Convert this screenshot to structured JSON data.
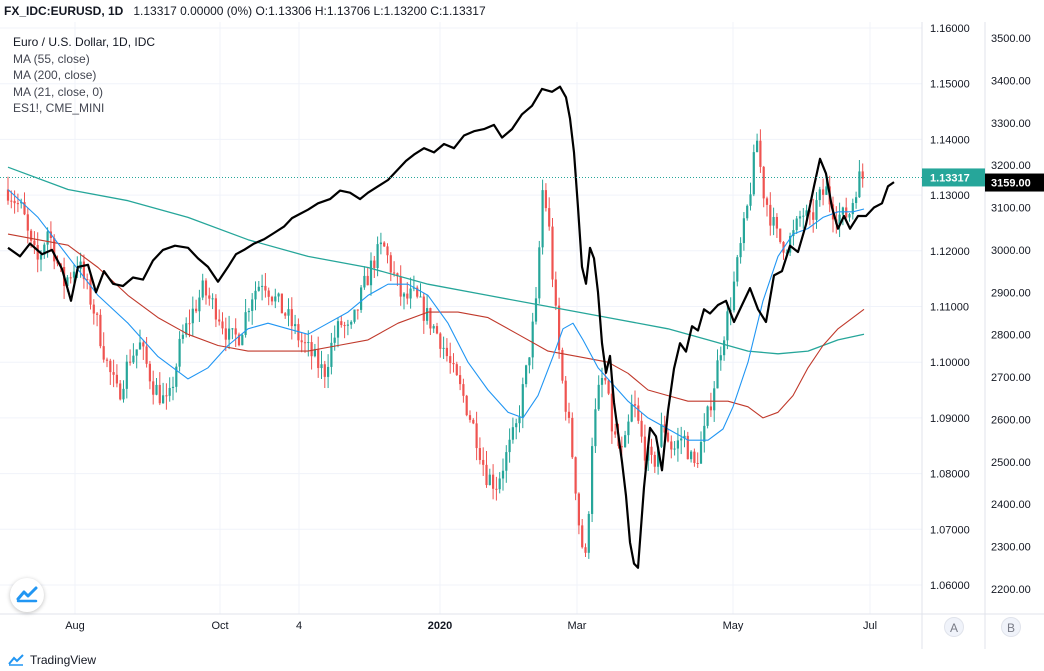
{
  "header": {
    "symbol": "FX_IDC:EURUSD, 1D",
    "ohlc": "1.13317 0.00000 (0%) O:1.13306 H:1.13706 L:1.13200 C:1.13317"
  },
  "legend": [
    "Euro / U.S. Dollar, 1D, IDC",
    "MA (55, close)",
    "MA (200, close)",
    "MA (21, close, 0)",
    "ES1!, CME_MINI"
  ],
  "footer": {
    "brand": "TradingView"
  },
  "scale_buttons": [
    "A",
    "B"
  ],
  "colors": {
    "up": "#26a69a",
    "down": "#ef5350",
    "ma55": "#2196f3",
    "ma200": "#26a69a",
    "ma21": "#c0392b",
    "es": "#000000",
    "price_badge": "#26a69a",
    "es_badge": "#000000"
  },
  "chart_data": {
    "type": "candlestick",
    "x_ticks": [
      "Aug",
      "Oct",
      "4",
      "2020",
      "Mar",
      "May",
      "Jul"
    ],
    "eurusd_axis": {
      "ticks": [
        "1.16000",
        "1.15000",
        "1.14000",
        "1.13000",
        "1.12000",
        "1.11000",
        "1.10000",
        "1.09000",
        "1.08000",
        "1.07000",
        "1.06000"
      ],
      "range": [
        1.0555,
        1.1605
      ]
    },
    "es_axis": {
      "ticks": [
        "3500.00",
        "3400.00",
        "3300.00",
        "3200.00",
        "3100.00",
        "3000.00",
        "2900.00",
        "2800.00",
        "2700.00",
        "2600.00",
        "2500.00",
        "2400.00",
        "2300.00",
        "2200.00"
      ],
      "range": [
        2170,
        3510
      ]
    },
    "last_price": "1.13317",
    "last_price_value": 1.13317,
    "es_last": "3159.00",
    "es_last_value": 3159,
    "eurusd_close_path": [
      [
        0,
        1.131
      ],
      [
        15,
        1.127
      ],
      [
        22,
        1.121
      ],
      [
        30,
        1.118
      ],
      [
        40,
        1.124
      ],
      [
        55,
        1.114
      ],
      [
        70,
        1.118
      ],
      [
        85,
        1.11
      ],
      [
        100,
        1.099
      ],
      [
        110,
        1.094
      ],
      [
        122,
        1.101
      ],
      [
        132,
        1.103
      ],
      [
        145,
        1.096
      ],
      [
        160,
        1.092
      ],
      [
        172,
        1.103
      ],
      [
        182,
        1.108
      ],
      [
        195,
        1.113
      ],
      [
        210,
        1.109
      ],
      [
        222,
        1.104
      ],
      [
        232,
        1.105
      ],
      [
        243,
        1.112
      ],
      [
        255,
        1.115
      ],
      [
        268,
        1.111
      ],
      [
        280,
        1.108
      ],
      [
        292,
        1.104
      ],
      [
        305,
        1.101
      ],
      [
        316,
        1.098
      ],
      [
        325,
        1.104
      ],
      [
        333,
        1.107
      ],
      [
        342,
        1.105
      ],
      [
        355,
        1.113
      ],
      [
        365,
        1.118
      ],
      [
        375,
        1.121
      ],
      [
        385,
        1.116
      ],
      [
        395,
        1.111
      ],
      [
        405,
        1.112
      ],
      [
        420,
        1.108
      ],
      [
        433,
        1.104
      ],
      [
        445,
        1.098
      ],
      [
        455,
        1.094
      ],
      [
        468,
        1.087
      ],
      [
        478,
        1.08
      ],
      [
        488,
        1.078
      ],
      [
        498,
        1.083
      ],
      [
        508,
        1.088
      ],
      [
        518,
        1.098
      ],
      [
        528,
        1.11
      ],
      [
        535,
        1.132
      ],
      [
        541,
        1.124
      ],
      [
        547,
        1.11
      ],
      [
        553,
        1.098
      ],
      [
        560,
        1.09
      ],
      [
        566,
        1.081
      ],
      [
        572,
        1.069
      ],
      [
        578,
        1.064
      ],
      [
        584,
        1.086
      ],
      [
        590,
        1.094
      ],
      [
        596,
        1.098
      ],
      [
        605,
        1.087
      ],
      [
        615,
        1.083
      ],
      [
        625,
        1.093
      ],
      [
        635,
        1.085
      ],
      [
        645,
        1.081
      ],
      [
        655,
        1.089
      ],
      [
        665,
        1.084
      ],
      [
        675,
        1.087
      ],
      [
        686,
        1.081
      ],
      [
        696,
        1.087
      ],
      [
        706,
        1.096
      ],
      [
        714,
        1.104
      ],
      [
        722,
        1.11
      ],
      [
        730,
        1.118
      ],
      [
        738,
        1.126
      ],
      [
        743,
        1.132
      ],
      [
        749,
        1.14
      ],
      [
        755,
        1.131
      ],
      [
        763,
        1.126
      ],
      [
        770,
        1.122
      ],
      [
        778,
        1.121
      ],
      [
        786,
        1.123
      ],
      [
        794,
        1.127
      ],
      [
        802,
        1.125
      ],
      [
        810,
        1.129
      ],
      [
        818,
        1.131
      ],
      [
        826,
        1.127
      ],
      [
        834,
        1.126
      ],
      [
        842,
        1.127
      ],
      [
        850,
        1.133
      ],
      [
        856,
        1.1332
      ]
    ],
    "ma55_path": [
      [
        0,
        1.131
      ],
      [
        30,
        1.126
      ],
      [
        60,
        1.119
      ],
      [
        90,
        1.112
      ],
      [
        120,
        1.107
      ],
      [
        150,
        1.101
      ],
      [
        180,
        1.097
      ],
      [
        200,
        1.099
      ],
      [
        220,
        1.103
      ],
      [
        240,
        1.106
      ],
      [
        260,
        1.107
      ],
      [
        280,
        1.106
      ],
      [
        300,
        1.105
      ],
      [
        320,
        1.107
      ],
      [
        340,
        1.109
      ],
      [
        360,
        1.112
      ],
      [
        380,
        1.114
      ],
      [
        400,
        1.114
      ],
      [
        420,
        1.112
      ],
      [
        440,
        1.107
      ],
      [
        460,
        1.1
      ],
      [
        480,
        1.095
      ],
      [
        500,
        1.091
      ],
      [
        515,
        1.09
      ],
      [
        530,
        1.094
      ],
      [
        545,
        1.101
      ],
      [
        555,
        1.106
      ],
      [
        565,
        1.107
      ],
      [
        575,
        1.104
      ],
      [
        590,
        1.099
      ],
      [
        605,
        1.096
      ],
      [
        620,
        1.093
      ],
      [
        640,
        1.09
      ],
      [
        660,
        1.088
      ],
      [
        680,
        1.086
      ],
      [
        700,
        1.086
      ],
      [
        715,
        1.088
      ],
      [
        725,
        1.092
      ],
      [
        740,
        1.1
      ],
      [
        755,
        1.111
      ],
      [
        770,
        1.119
      ],
      [
        785,
        1.123
      ],
      [
        800,
        1.124
      ],
      [
        815,
        1.126
      ],
      [
        830,
        1.127
      ],
      [
        845,
        1.127
      ],
      [
        856,
        1.1275
      ]
    ],
    "ma200_path": [
      [
        0,
        1.135
      ],
      [
        60,
        1.131
      ],
      [
        120,
        1.129
      ],
      [
        180,
        1.126
      ],
      [
        240,
        1.122
      ],
      [
        300,
        1.119
      ],
      [
        360,
        1.117
      ],
      [
        420,
        1.114
      ],
      [
        480,
        1.112
      ],
      [
        540,
        1.11
      ],
      [
        600,
        1.108
      ],
      [
        660,
        1.106
      ],
      [
        700,
        1.104
      ],
      [
        740,
        1.102
      ],
      [
        770,
        1.1015
      ],
      [
        800,
        1.102
      ],
      [
        830,
        1.104
      ],
      [
        856,
        1.105
      ]
    ],
    "ma21_path": [
      [
        0,
        1.123
      ],
      [
        30,
        1.122
      ],
      [
        60,
        1.121
      ],
      [
        90,
        1.117
      ],
      [
        120,
        1.112
      ],
      [
        150,
        1.108
      ],
      [
        180,
        1.105
      ],
      [
        210,
        1.103
      ],
      [
        240,
        1.102
      ],
      [
        270,
        1.102
      ],
      [
        300,
        1.102
      ],
      [
        330,
        1.103
      ],
      [
        360,
        1.104
      ],
      [
        390,
        1.107
      ],
      [
        420,
        1.109
      ],
      [
        450,
        1.109
      ],
      [
        480,
        1.108
      ],
      [
        510,
        1.105
      ],
      [
        540,
        1.102
      ],
      [
        570,
        1.101
      ],
      [
        600,
        1.1
      ],
      [
        620,
        1.098
      ],
      [
        640,
        1.095
      ],
      [
        660,
        1.094
      ],
      [
        680,
        1.093
      ],
      [
        700,
        1.093
      ],
      [
        720,
        1.093
      ],
      [
        740,
        1.092
      ],
      [
        755,
        1.09
      ],
      [
        770,
        1.091
      ],
      [
        785,
        1.094
      ],
      [
        800,
        1.099
      ],
      [
        815,
        1.103
      ],
      [
        830,
        1.106
      ],
      [
        845,
        1.108
      ],
      [
        856,
        1.1095
      ]
    ],
    "es_path": [
      [
        0,
        3005
      ],
      [
        12,
        2985
      ],
      [
        22,
        3015
      ],
      [
        34,
        2990
      ],
      [
        44,
        3000
      ],
      [
        54,
        2955
      ],
      [
        63,
        2880
      ],
      [
        70,
        2960
      ],
      [
        80,
        2965
      ],
      [
        88,
        2900
      ],
      [
        96,
        2950
      ],
      [
        105,
        2920
      ],
      [
        115,
        2915
      ],
      [
        125,
        2935
      ],
      [
        135,
        2930
      ],
      [
        145,
        2975
      ],
      [
        155,
        3000
      ],
      [
        167,
        3010
      ],
      [
        180,
        3005
      ],
      [
        190,
        2980
      ],
      [
        200,
        2960
      ],
      [
        210,
        2925
      ],
      [
        220,
        2960
      ],
      [
        228,
        2990
      ],
      [
        236,
        3000
      ],
      [
        246,
        3015
      ],
      [
        256,
        3025
      ],
      [
        266,
        3040
      ],
      [
        276,
        3055
      ],
      [
        284,
        3075
      ],
      [
        292,
        3085
      ],
      [
        300,
        3095
      ],
      [
        310,
        3110
      ],
      [
        322,
        3120
      ],
      [
        332,
        3140
      ],
      [
        342,
        3135
      ],
      [
        352,
        3120
      ],
      [
        360,
        3135
      ],
      [
        370,
        3150
      ],
      [
        380,
        3165
      ],
      [
        390,
        3190
      ],
      [
        398,
        3210
      ],
      [
        406,
        3225
      ],
      [
        416,
        3240
      ],
      [
        426,
        3230
      ],
      [
        436,
        3250
      ],
      [
        446,
        3240
      ],
      [
        456,
        3270
      ],
      [
        466,
        3280
      ],
      [
        476,
        3285
      ],
      [
        486,
        3295
      ],
      [
        494,
        3265
      ],
      [
        504,
        3285
      ],
      [
        514,
        3320
      ],
      [
        524,
        3340
      ],
      [
        534,
        3380
      ],
      [
        544,
        3373
      ],
      [
        552,
        3385
      ],
      [
        558,
        3360
      ],
      [
        562,
        3310
      ],
      [
        566,
        3230
      ],
      [
        570,
        3100
      ],
      [
        574,
        2960
      ],
      [
        578,
        2920
      ],
      [
        582,
        3005
      ],
      [
        586,
        2980
      ],
      [
        590,
        2900
      ],
      [
        594,
        2780
      ],
      [
        598,
        2710
      ],
      [
        602,
        2750
      ],
      [
        606,
        2640
      ],
      [
        610,
        2570
      ],
      [
        614,
        2500
      ],
      [
        618,
        2420
      ],
      [
        622,
        2310
      ],
      [
        626,
        2260
      ],
      [
        630,
        2250
      ],
      [
        636,
        2440
      ],
      [
        642,
        2580
      ],
      [
        648,
        2560
      ],
      [
        654,
        2480
      ],
      [
        660,
        2620
      ],
      [
        666,
        2720
      ],
      [
        672,
        2780
      ],
      [
        678,
        2760
      ],
      [
        684,
        2820
      ],
      [
        690,
        2810
      ],
      [
        696,
        2860
      ],
      [
        702,
        2850
      ],
      [
        710,
        2870
      ],
      [
        718,
        2880
      ],
      [
        726,
        2830
      ],
      [
        734,
        2870
      ],
      [
        742,
        2910
      ],
      [
        750,
        2860
      ],
      [
        758,
        2830
      ],
      [
        766,
        2940
      ],
      [
        774,
        2950
      ],
      [
        782,
        3010
      ],
      [
        790,
        2995
      ],
      [
        798,
        3060
      ],
      [
        806,
        3150
      ],
      [
        812,
        3215
      ],
      [
        818,
        3180
      ],
      [
        824,
        3100
      ],
      [
        830,
        3050
      ],
      [
        836,
        3080
      ],
      [
        842,
        3050
      ],
      [
        850,
        3080
      ],
      [
        858,
        3080
      ],
      [
        866,
        3100
      ],
      [
        874,
        3110
      ],
      [
        880,
        3150
      ],
      [
        886,
        3160
      ]
    ]
  }
}
